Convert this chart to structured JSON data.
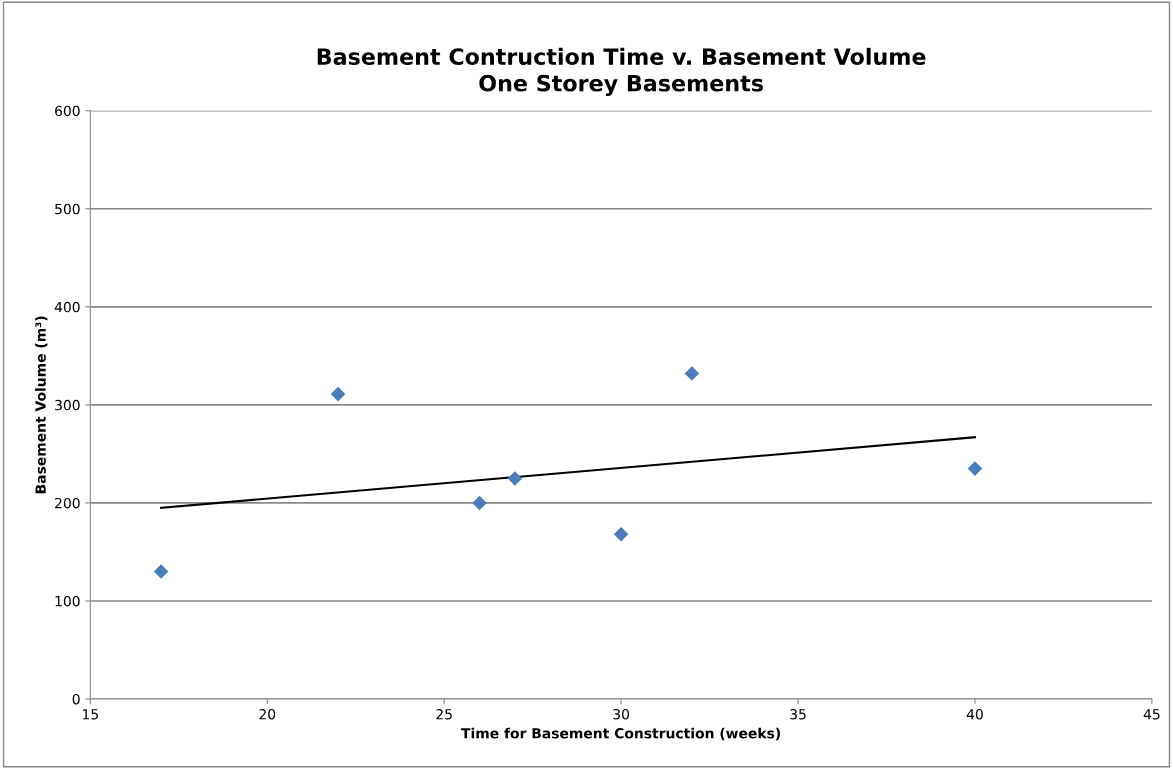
{
  "chart_data": {
    "type": "scatter",
    "title": "Basement Contruction Time v. Basement Volume\nOne Storey Basements",
    "xlabel": "Time for Basement Construction (weeks)",
    "ylabel": "Basement Volume (m³)",
    "series": [
      {
        "color": "#4a7ebb",
        "marker": "diamond",
        "x": [
          17,
          22,
          26,
          27,
          30,
          32,
          40
        ],
        "values": [
          130,
          311,
          200,
          225,
          168,
          332,
          235
        ]
      },
      {
        "type": "line",
        "color": "#000000",
        "marker": "none",
        "line_style": "solid",
        "x": [
          17,
          40
        ],
        "values": [
          195,
          267
        ]
      }
    ],
    "xlim": [
      15,
      45
    ],
    "xticks": [
      15,
      20,
      25,
      30,
      35,
      40,
      45
    ],
    "ylim": [
      0,
      600
    ],
    "yticks": [
      0,
      100,
      200,
      300,
      400,
      500,
      600
    ],
    "grid": "y",
    "legend": false
  }
}
